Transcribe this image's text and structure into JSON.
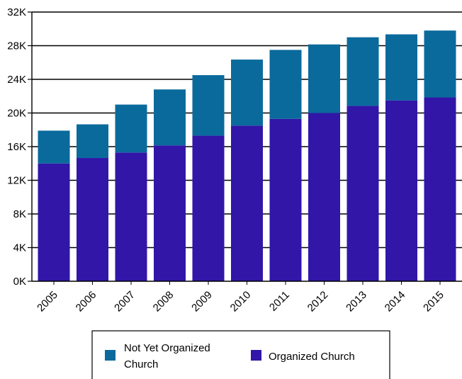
{
  "chart_data": {
    "type": "bar",
    "stacked": true,
    "categories": [
      "2005",
      "2006",
      "2007",
      "2008",
      "2009",
      "2010",
      "2011",
      "2012",
      "2013",
      "2014",
      "2015"
    ],
    "series": [
      {
        "name": "Organized Church",
        "color": "#3116a8",
        "values": [
          14000,
          14650,
          15300,
          16150,
          17300,
          18500,
          19300,
          20000,
          20850,
          21500,
          21850
        ]
      },
      {
        "name": "Not Yet Organized Church",
        "color": "#0a6a9c",
        "values": [
          3900,
          4000,
          5700,
          6650,
          7200,
          7850,
          8200,
          8150,
          8150,
          7850,
          7950
        ]
      }
    ],
    "ylim": [
      0,
      32000
    ],
    "yticks": [
      0,
      4000,
      8000,
      12000,
      16000,
      20000,
      24000,
      28000,
      32000
    ],
    "ytick_labels": [
      "0K",
      "4K",
      "8K",
      "12K",
      "16K",
      "20K",
      "24K",
      "28K",
      "32K"
    ],
    "grid": true,
    "legend_position": "bottom",
    "legend": {
      "entries": [
        {
          "label_lines": [
            "Not Yet Organized",
            "Church"
          ],
          "color": "#0a6a9c"
        },
        {
          "label_lines": [
            "Organized Church"
          ],
          "color": "#3116a8"
        }
      ]
    }
  }
}
